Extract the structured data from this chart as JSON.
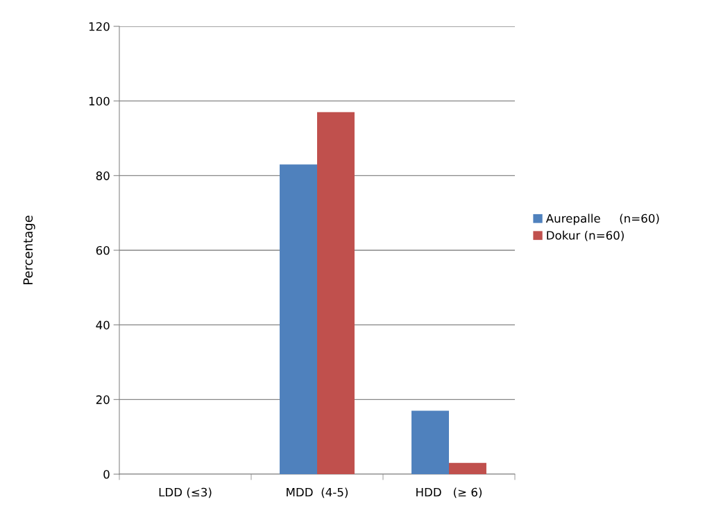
{
  "chart_data": {
    "type": "bar",
    "ylabel": "Percentage",
    "categories": [
      "LDD (≤3)",
      "MDD  (4-5)",
      "HDD   (≥ 6)"
    ],
    "series": [
      {
        "name": "Aurepalle     (n=60)",
        "color": "#4f81bd",
        "values": [
          0,
          83,
          17
        ]
      },
      {
        "name": "Dokur (n=60)",
        "color": "#c0504d",
        "values": [
          0,
          97,
          3
        ]
      }
    ],
    "ylim": [
      0,
      120
    ],
    "yticks": [
      0,
      20,
      40,
      60,
      80,
      100,
      120
    ],
    "grid": "y",
    "legend": "right"
  }
}
